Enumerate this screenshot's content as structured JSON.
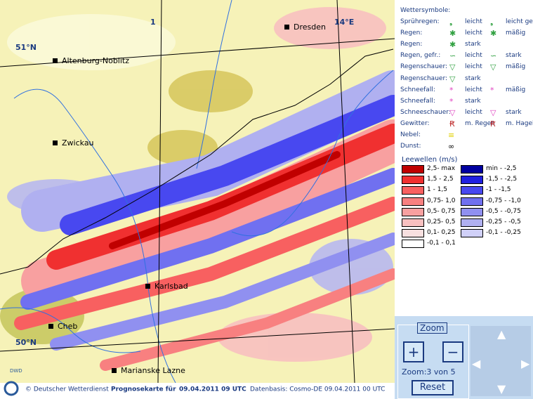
{
  "map": {
    "coords": [
      "51°N",
      "50°N",
      "14°E",
      "1"
    ],
    "cities": [
      "Dresden",
      "Altenburg-Noblitz",
      "Zwickau",
      "Karlsbad",
      "Cheb",
      "Marianske Lazne"
    ]
  },
  "footer": {
    "logo": "DWD",
    "copyright": "© Deutscher Wetterdienst",
    "label": "Prognosekarte für",
    "time": "09.04.2011 09 UTC",
    "base": "Datenbasis: Cosmo-DE 09.04.2011 00 UTC"
  },
  "legend": {
    "title": "Wettersymbole:",
    "rows": [
      [
        "Sprühregen:",
        "leicht",
        "leicht gefr."
      ],
      [
        "Regen:",
        "leicht",
        "mäßig"
      ],
      [
        "Regen:",
        "stark"
      ],
      [
        "Regen, gefr.:",
        "leicht",
        "stark"
      ],
      [
        "Regenschauer:",
        "leicht",
        "mäßig"
      ],
      [
        "Regenschauer:",
        "stark"
      ],
      [
        "Schneefall:",
        "leicht",
        "mäßig"
      ],
      [
        "Schneefall:",
        "stark"
      ],
      [
        "Schneeschauer:",
        "leicht",
        "stark"
      ],
      [
        "Gewitter:",
        "m. Regen",
        "m. Hagel"
      ],
      [
        "Nebel:"
      ],
      [
        "Dunst:"
      ]
    ],
    "lee_title": "Leewellen (m/s)",
    "lee": [
      [
        {
          "label": "2,5- max",
          "color": "#c00000"
        },
        {
          "label": "min - -2,5",
          "color": "#0000a0"
        }
      ],
      [
        {
          "label": "1,5 - 2,5",
          "color": "#f03030"
        },
        {
          "label": "-1,5 - -2,5",
          "color": "#2020e0"
        }
      ],
      [
        {
          "label": "1 - 1,5",
          "color": "#f86060"
        },
        {
          "label": "-1 - -1,5",
          "color": "#4848f0"
        }
      ],
      [
        {
          "label": "0,75- 1,0",
          "color": "#f88080"
        },
        {
          "label": "-0,75 - -1,0",
          "color": "#7070f0"
        }
      ],
      [
        {
          "label": "0,5- 0,75",
          "color": "#f8a0a0"
        },
        {
          "label": "-0,5 - -0,75",
          "color": "#9090f0"
        }
      ],
      [
        {
          "label": "0,25- 0,5",
          "color": "#f8c0c0"
        },
        {
          "label": "-0,25 - -0,5",
          "color": "#b0b0f0"
        }
      ],
      [
        {
          "label": "0,1- 0,25",
          "color": "#f8e0e0"
        },
        {
          "label": "-0,1 - -0,25",
          "color": "#d0d0f8"
        }
      ],
      [
        {
          "label": "-0,1 - 0,1",
          "color": "#ffffff"
        }
      ]
    ]
  },
  "zoom": {
    "title": "Zoom",
    "label": "Zoom:",
    "level": "3 von 5",
    "reset": "Reset"
  }
}
